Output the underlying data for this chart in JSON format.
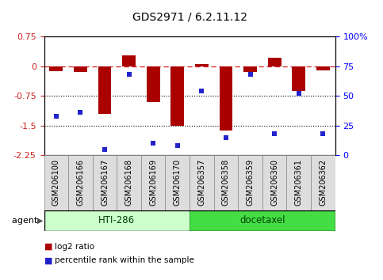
{
  "title": "GDS2971 / 6.2.11.12",
  "samples": [
    "GSM206100",
    "GSM206166",
    "GSM206167",
    "GSM206168",
    "GSM206169",
    "GSM206170",
    "GSM206357",
    "GSM206358",
    "GSM206359",
    "GSM206360",
    "GSM206361",
    "GSM206362"
  ],
  "log2_ratio": [
    -0.12,
    -0.14,
    -1.2,
    0.28,
    -0.9,
    -1.5,
    0.05,
    -1.62,
    -0.15,
    0.22,
    -0.62,
    -0.1
  ],
  "percentile": [
    33,
    36,
    5,
    68,
    10,
    8,
    54,
    15,
    68,
    18,
    52,
    18
  ],
  "ylim_left": [
    -2.25,
    0.75
  ],
  "ylim_right": [
    0,
    100
  ],
  "yticks_left": [
    -2.25,
    -1.5,
    -0.75,
    0,
    0.75
  ],
  "yticks_right": [
    0,
    25,
    50,
    75,
    100
  ],
  "hlines_dashed": [
    0
  ],
  "hlines_dotted": [
    -0.75,
    -1.5
  ],
  "bar_color": "#aa0000",
  "dot_color": "#2222cc",
  "agent_groups": [
    {
      "label": "HTI-286",
      "start": 0,
      "end": 6,
      "color": "#ccffcc",
      "edge": "#33aa33"
    },
    {
      "label": "docetaxel",
      "start": 6,
      "end": 12,
      "color": "#44dd44",
      "edge": "#228822"
    }
  ],
  "legend_bar_label": "log2 ratio",
  "legend_dot_label": "percentile rank within the sample",
  "xlabel_agent": "agent",
  "background_color": "#ffffff",
  "plot_bg": "#ffffff",
  "title_fontsize": 10,
  "tick_fontsize": 8,
  "label_fontsize": 7,
  "bar_width": 0.55
}
